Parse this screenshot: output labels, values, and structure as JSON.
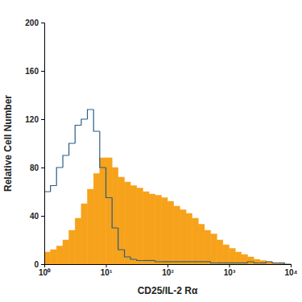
{
  "chart_data": {
    "type": "histogram",
    "x_label": "CD25/IL-2 Rα",
    "y_label": "Relative Cell Number",
    "log": "x",
    "bins": [
      1,
      1.26,
      1.58,
      2,
      2.51,
      3.16,
      3.98,
      5.01,
      6.31,
      7.94,
      10,
      12.6,
      15.8,
      20,
      25.1,
      31.6,
      39.8,
      50.1,
      63.1,
      79.4,
      100,
      126,
      158,
      200,
      251,
      316,
      398,
      501,
      631,
      794,
      1000,
      1259,
      1585,
      1995,
      2512,
      3162,
      3981,
      5012,
      6310,
      7943,
      10000
    ],
    "series": [
      {
        "type": "area",
        "color": "#f7a21b",
        "values": [
          10,
          12,
          15,
          20,
          28,
          38,
          50,
          62,
          75,
          88,
          88,
          80,
          72,
          68,
          65,
          63,
          60,
          58,
          57,
          55,
          52,
          48,
          45,
          42,
          38,
          33,
          28,
          25,
          20,
          16,
          13,
          10,
          8,
          6,
          4,
          3,
          2,
          1,
          1,
          0
        ]
      },
      {
        "type": "line",
        "color": "#2a5d84",
        "values": [
          60,
          65,
          80,
          90,
          100,
          115,
          120,
          128,
          110,
          80,
          55,
          30,
          12,
          6,
          4,
          3,
          3,
          3,
          2,
          2,
          2,
          2,
          2,
          2,
          2,
          2,
          2,
          1,
          1,
          1,
          1,
          1,
          1,
          2,
          1,
          1,
          2,
          1,
          1,
          0
        ]
      }
    ],
    "xlim": [
      1,
      10000
    ],
    "xticks": [
      {
        "value": 1,
        "label": "10⁰"
      },
      {
        "value": 10,
        "label": "10¹"
      },
      {
        "value": 100,
        "label": "10²"
      },
      {
        "value": 1000,
        "label": "10³"
      },
      {
        "value": 10000,
        "label": "10⁴"
      }
    ],
    "ylim": [
      0,
      200
    ],
    "yticks": [
      0,
      40,
      80,
      120,
      160,
      200
    ]
  }
}
